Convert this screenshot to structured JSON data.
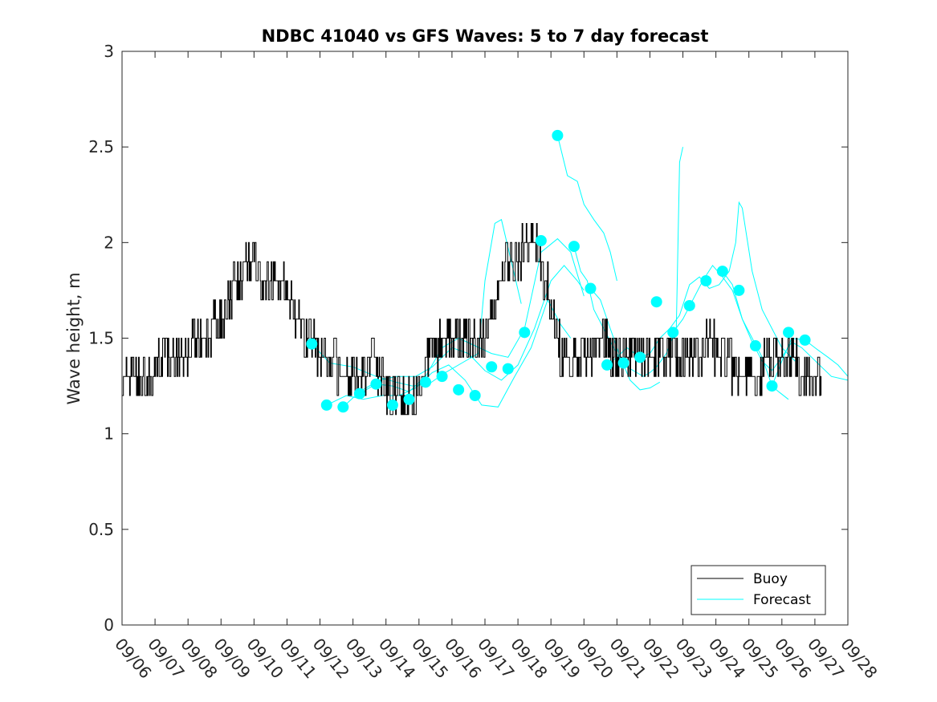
{
  "chart_data": {
    "type": "line",
    "title": "NDBC 41040 vs GFS Waves: 5 to 7 day forecast",
    "xlabel": "",
    "ylabel": "Wave height, m",
    "xlim": [
      0,
      22
    ],
    "ylim": [
      0,
      3
    ],
    "x_tick_labels": [
      "09/06",
      "09/07",
      "09/08",
      "09/09",
      "09/10",
      "09/11",
      "09/12",
      "09/13",
      "09/14",
      "09/15",
      "09/16",
      "09/17",
      "09/18",
      "09/19",
      "09/20",
      "09/21",
      "09/22",
      "09/23",
      "09/24",
      "09/25",
      "09/26",
      "09/27",
      "09/28"
    ],
    "y_ticks": [
      0,
      0.5,
      1,
      1.5,
      2,
      2.5,
      3
    ],
    "y_tick_labels": [
      "0",
      "0.5",
      "1",
      "1.5",
      "2",
      "2.5",
      "3"
    ],
    "legend": {
      "position": "bottom-right",
      "entries": [
        {
          "label": "Buoy",
          "color": "#000000"
        },
        {
          "label": "Forecast",
          "color": "#00FFFF"
        }
      ]
    },
    "series": [
      {
        "name": "Buoy",
        "color": "#000000",
        "x_units": "days since 09/06",
        "points": [
          [
            0.0,
            1.22
          ],
          [
            0.03,
            1.3
          ],
          [
            0.5,
            1.3
          ],
          [
            0.8,
            1.3
          ],
          [
            1.0,
            1.33
          ],
          [
            1.1,
            1.4
          ],
          [
            1.3,
            1.36
          ],
          [
            1.6,
            1.42
          ],
          [
            1.9,
            1.42
          ],
          [
            2.1,
            1.45
          ],
          [
            2.3,
            1.5
          ],
          [
            2.5,
            1.48
          ],
          [
            2.7,
            1.55
          ],
          [
            2.9,
            1.6
          ],
          [
            3.1,
            1.65
          ],
          [
            3.3,
            1.72
          ],
          [
            3.5,
            1.8
          ],
          [
            3.7,
            1.85
          ],
          [
            3.9,
            1.85
          ],
          [
            4.0,
            1.88
          ],
          [
            4.2,
            1.85
          ],
          [
            4.4,
            1.83
          ],
          [
            4.6,
            1.82
          ],
          [
            4.8,
            1.78
          ],
          [
            5.0,
            1.72
          ],
          [
            5.2,
            1.62
          ],
          [
            5.4,
            1.55
          ],
          [
            5.6,
            1.52
          ],
          [
            5.8,
            1.48
          ],
          [
            6.0,
            1.42
          ],
          [
            6.2,
            1.38
          ],
          [
            6.5,
            1.35
          ],
          [
            6.8,
            1.33
          ],
          [
            7.0,
            1.32
          ],
          [
            7.3,
            1.33
          ],
          [
            7.6,
            1.36
          ],
          [
            7.8,
            1.3
          ],
          [
            8.0,
            1.2
          ],
          [
            8.3,
            1.15
          ],
          [
            8.6,
            1.16
          ],
          [
            8.8,
            1.2
          ],
          [
            9.0,
            1.3
          ],
          [
            9.3,
            1.38
          ],
          [
            9.6,
            1.45
          ],
          [
            9.9,
            1.48
          ],
          [
            10.2,
            1.48
          ],
          [
            10.5,
            1.45
          ],
          [
            10.8,
            1.5
          ],
          [
            11.1,
            1.55
          ],
          [
            11.3,
            1.65
          ],
          [
            11.5,
            1.8
          ],
          [
            11.7,
            1.88
          ],
          [
            11.9,
            1.92
          ],
          [
            12.1,
            1.95
          ],
          [
            12.3,
            1.96
          ],
          [
            12.5,
            2.0
          ],
          [
            12.7,
            1.9
          ],
          [
            12.9,
            1.75
          ],
          [
            13.1,
            1.55
          ],
          [
            13.3,
            1.42
          ],
          [
            13.5,
            1.38
          ],
          [
            13.7,
            1.35
          ],
          [
            13.9,
            1.4
          ],
          [
            14.1,
            1.42
          ],
          [
            14.3,
            1.45
          ],
          [
            14.5,
            1.5
          ],
          [
            14.7,
            1.45
          ],
          [
            14.9,
            1.4
          ],
          [
            15.1,
            1.35
          ],
          [
            15.4,
            1.36
          ],
          [
            15.7,
            1.38
          ],
          [
            16.0,
            1.42
          ],
          [
            16.3,
            1.4
          ],
          [
            16.6,
            1.45
          ],
          [
            16.9,
            1.4
          ],
          [
            17.2,
            1.36
          ],
          [
            17.5,
            1.4
          ],
          [
            17.8,
            1.48
          ],
          [
            18.1,
            1.42
          ],
          [
            18.4,
            1.36
          ],
          [
            18.7,
            1.32
          ],
          [
            19.0,
            1.26
          ],
          [
            19.3,
            1.3
          ],
          [
            19.6,
            1.4
          ],
          [
            19.9,
            1.45
          ],
          [
            20.2,
            1.4
          ],
          [
            20.5,
            1.35
          ],
          [
            20.8,
            1.28
          ],
          [
            21.0,
            1.25
          ],
          [
            21.2,
            1.26
          ]
        ]
      },
      {
        "name": "Forecast",
        "color": "#00FFFF",
        "x_units": "days since 09/06",
        "markers": [
          [
            5.75,
            1.47
          ],
          [
            6.2,
            1.15
          ],
          [
            6.7,
            1.14
          ],
          [
            7.2,
            1.21
          ],
          [
            7.7,
            1.26
          ],
          [
            8.2,
            1.15
          ],
          [
            8.7,
            1.18
          ],
          [
            9.2,
            1.27
          ],
          [
            9.7,
            1.3
          ],
          [
            10.2,
            1.23
          ],
          [
            10.7,
            1.2
          ],
          [
            11.2,
            1.35
          ],
          [
            11.7,
            1.34
          ],
          [
            12.2,
            1.53
          ],
          [
            12.7,
            2.01
          ],
          [
            13.2,
            2.56
          ],
          [
            13.7,
            1.98
          ],
          [
            14.2,
            1.76
          ],
          [
            14.7,
            1.36
          ],
          [
            15.2,
            1.37
          ],
          [
            15.7,
            1.4
          ],
          [
            16.2,
            1.69
          ],
          [
            16.7,
            1.53
          ],
          [
            17.2,
            1.67
          ],
          [
            17.7,
            1.8
          ],
          [
            18.2,
            1.85
          ],
          [
            18.7,
            1.75
          ],
          [
            19.2,
            1.46
          ],
          [
            19.7,
            1.25
          ],
          [
            20.2,
            1.53
          ],
          [
            20.7,
            1.49
          ]
        ],
        "lines": [
          [
            [
              5.75,
              1.47
            ],
            [
              6.3,
              1.37
            ],
            [
              7.0,
              1.35
            ],
            [
              7.7,
              1.3
            ],
            [
              8.3,
              1.27
            ],
            [
              8.8,
              1.25
            ],
            [
              9.3,
              1.26
            ],
            [
              9.8,
              1.32
            ],
            [
              10.3,
              1.37
            ],
            [
              10.8,
              1.42
            ],
            [
              11.0,
              1.8
            ],
            [
              11.3,
              2.1
            ],
            [
              11.5,
              2.12
            ],
            [
              11.8,
              1.9
            ],
            [
              12.1,
              1.68
            ]
          ],
          [
            [
              6.2,
              1.15
            ],
            [
              6.8,
              1.2
            ],
            [
              7.3,
              1.18
            ],
            [
              7.9,
              1.2
            ],
            [
              8.4,
              1.2
            ],
            [
              8.9,
              1.24
            ],
            [
              9.4,
              1.32
            ],
            [
              9.9,
              1.36
            ],
            [
              10.4,
              1.28
            ],
            [
              10.9,
              1.15
            ],
            [
              11.4,
              1.14
            ],
            [
              11.9,
              1.3
            ],
            [
              12.4,
              1.45
            ],
            [
              12.9,
              1.7
            ],
            [
              13.3,
              1.57
            ],
            [
              13.6,
              1.5
            ]
          ],
          [
            [
              6.7,
              1.14
            ],
            [
              7.2,
              1.22
            ],
            [
              7.8,
              1.28
            ],
            [
              8.3,
              1.3
            ],
            [
              8.9,
              1.3
            ],
            [
              9.4,
              1.35
            ],
            [
              10.0,
              1.45
            ],
            [
              10.5,
              1.42
            ],
            [
              11.0,
              1.33
            ],
            [
              11.5,
              1.28
            ],
            [
              12.0,
              1.36
            ],
            [
              12.5,
              1.55
            ],
            [
              13.0,
              1.8
            ],
            [
              13.4,
              1.88
            ],
            [
              13.8,
              1.8
            ],
            [
              14.0,
              1.75
            ]
          ],
          [
            [
              7.2,
              1.21
            ],
            [
              7.7,
              1.26
            ],
            [
              8.2,
              1.25
            ],
            [
              8.7,
              1.22
            ],
            [
              9.2,
              1.3
            ],
            [
              9.7,
              1.45
            ],
            [
              10.2,
              1.5
            ],
            [
              10.7,
              1.46
            ],
            [
              11.2,
              1.42
            ],
            [
              11.7,
              1.4
            ],
            [
              12.2,
              1.55
            ],
            [
              12.7,
              1.95
            ],
            [
              13.2,
              2.02
            ],
            [
              13.6,
              1.95
            ],
            [
              14.0,
              1.72
            ]
          ],
          [
            [
              13.2,
              2.56
            ],
            [
              13.5,
              2.35
            ],
            [
              13.8,
              2.32
            ],
            [
              14.0,
              2.2
            ],
            [
              14.3,
              2.12
            ],
            [
              14.6,
              2.05
            ],
            [
              14.8,
              1.95
            ],
            [
              15.0,
              1.8
            ]
          ],
          [
            [
              13.7,
              1.98
            ],
            [
              13.9,
              1.85
            ],
            [
              14.1,
              1.8
            ],
            [
              14.3,
              1.65
            ],
            [
              14.6,
              1.55
            ],
            [
              14.9,
              1.45
            ],
            [
              15.2,
              1.36
            ],
            [
              15.5,
              1.33
            ],
            [
              15.8,
              1.3
            ],
            [
              16.0,
              1.32
            ],
            [
              16.2,
              1.35
            ],
            [
              16.5,
              1.42
            ],
            [
              16.8,
              1.55
            ],
            [
              16.9,
              2.42
            ],
            [
              17.0,
              2.5
            ]
          ],
          [
            [
              14.2,
              1.76
            ],
            [
              14.5,
              1.7
            ],
            [
              14.8,
              1.55
            ],
            [
              15.1,
              1.4
            ],
            [
              15.4,
              1.28
            ],
            [
              15.7,
              1.23
            ],
            [
              16.0,
              1.24
            ],
            [
              16.3,
              1.27
            ]
          ],
          [
            [
              14.7,
              1.36
            ],
            [
              15.0,
              1.4
            ],
            [
              15.3,
              1.45
            ],
            [
              15.7,
              1.4
            ],
            [
              16.0,
              1.42
            ],
            [
              16.3,
              1.5
            ],
            [
              16.6,
              1.55
            ],
            [
              16.9,
              1.62
            ],
            [
              17.2,
              1.78
            ],
            [
              17.5,
              1.82
            ],
            [
              17.8,
              1.76
            ],
            [
              18.1,
              1.78
            ],
            [
              18.4,
              1.85
            ],
            [
              18.6,
              2.0
            ],
            [
              18.7,
              2.21
            ],
            [
              18.8,
              2.18
            ],
            [
              19.1,
              1.85
            ],
            [
              19.4,
              1.65
            ],
            [
              19.7,
              1.55
            ],
            [
              20.0,
              1.45
            ],
            [
              20.4,
              1.38
            ]
          ],
          [
            [
              16.7,
              1.53
            ],
            [
              17.0,
              1.6
            ],
            [
              17.3,
              1.7
            ],
            [
              17.6,
              1.8
            ],
            [
              17.9,
              1.88
            ],
            [
              18.2,
              1.82
            ],
            [
              18.5,
              1.75
            ],
            [
              18.8,
              1.6
            ],
            [
              19.1,
              1.48
            ],
            [
              19.4,
              1.38
            ],
            [
              19.7,
              1.33
            ],
            [
              20.0,
              1.4
            ],
            [
              20.3,
              1.48
            ],
            [
              20.6,
              1.45
            ],
            [
              20.9,
              1.4
            ],
            [
              21.2,
              1.35
            ],
            [
              21.5,
              1.3
            ],
            [
              22.0,
              1.28
            ]
          ],
          [
            [
              18.2,
              1.85
            ],
            [
              18.5,
              1.78
            ],
            [
              18.8,
              1.6
            ],
            [
              19.1,
              1.5
            ],
            [
              19.4,
              1.4
            ],
            [
              19.7,
              1.25
            ],
            [
              19.9,
              1.22
            ],
            [
              20.2,
              1.18
            ]
          ],
          [
            [
              19.7,
              1.25
            ],
            [
              20.0,
              1.38
            ],
            [
              20.3,
              1.5
            ],
            [
              20.7,
              1.49
            ],
            [
              21.0,
              1.45
            ],
            [
              21.4,
              1.4
            ],
            [
              21.7,
              1.36
            ],
            [
              22.0,
              1.3
            ]
          ]
        ]
      }
    ]
  }
}
